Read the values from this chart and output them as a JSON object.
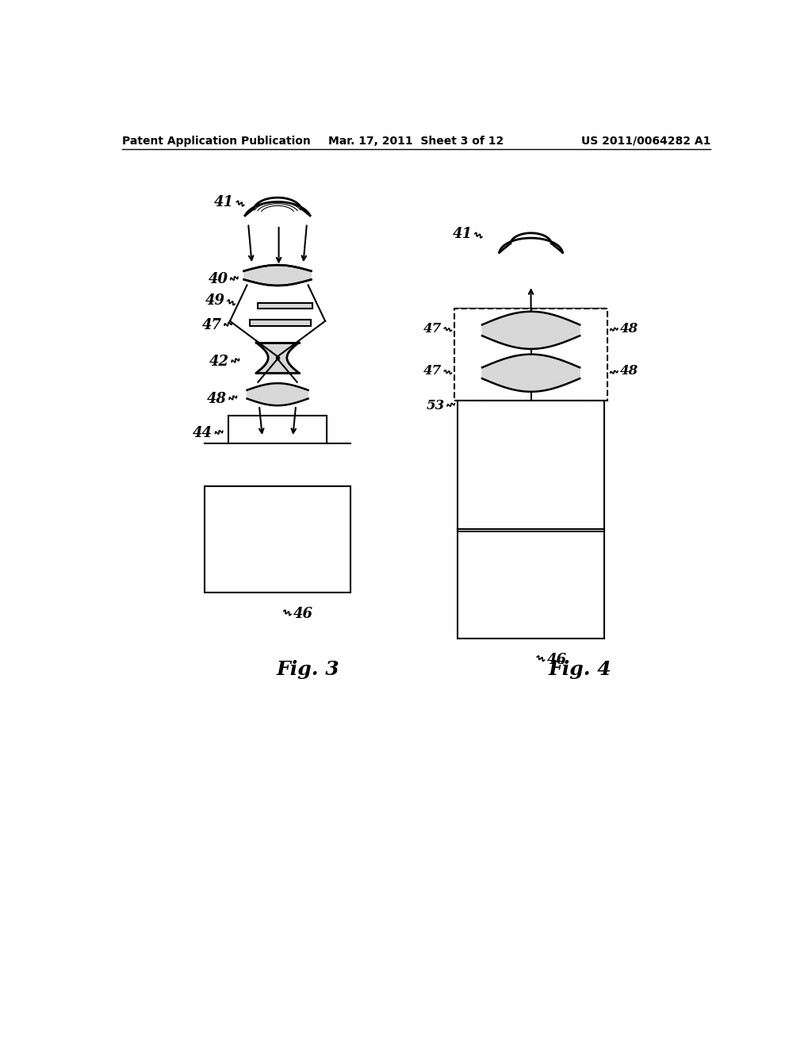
{
  "bg_color": "#ffffff",
  "header_left": "Patent Application Publication",
  "header_mid": "Mar. 17, 2011  Sheet 3 of 12",
  "header_right": "US 2011/0064282 A1",
  "fig3_label": "Fig. 3",
  "fig4_label": "Fig. 4"
}
